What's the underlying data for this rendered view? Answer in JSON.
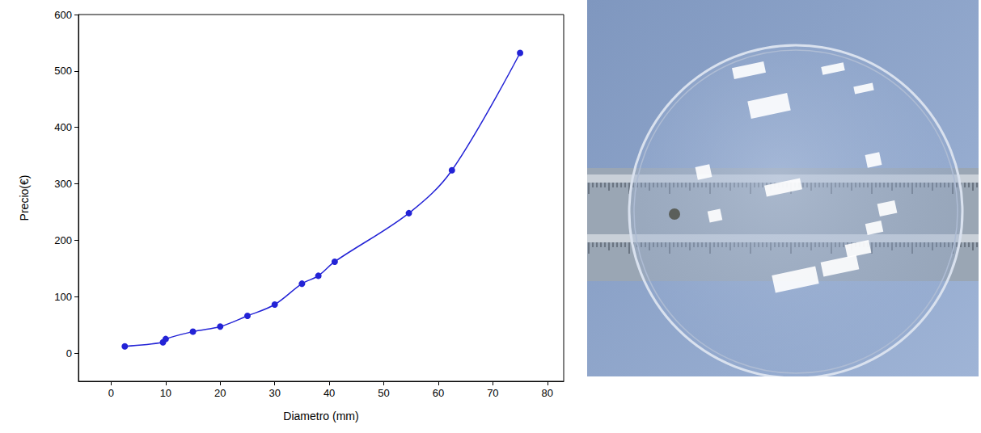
{
  "chart_data": {
    "type": "line",
    "x_label": "Diametro (mm)",
    "y_label": "Precio(€)",
    "x": [
      2.5,
      9.5,
      10,
      15,
      20,
      25,
      30,
      35,
      38,
      41,
      54.6,
      62.5,
      75
    ],
    "values": [
      12,
      19,
      25,
      38,
      47,
      66,
      86,
      123,
      137,
      162,
      248,
      324,
      532
    ],
    "color": "#2323d6",
    "marker": "circle",
    "line_style": "smooth",
    "xlim": [
      -6,
      83
    ],
    "xticks": [
      0,
      10,
      20,
      30,
      40,
      50,
      60,
      70,
      80
    ],
    "ylim": [
      -50,
      600
    ],
    "yticks": [
      0,
      100,
      200,
      300,
      400,
      500,
      600
    ],
    "grid": false
  }
}
